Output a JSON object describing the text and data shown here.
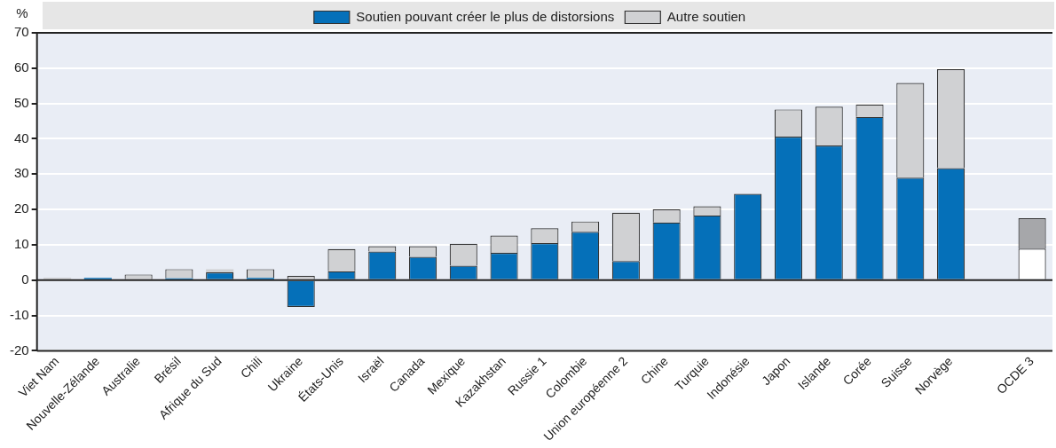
{
  "chart_data": {
    "type": "bar",
    "stacked": true,
    "ylabel": "%",
    "legend": "top",
    "grid": "y",
    "categories": [
      "Viet Nam",
      "Nouvelle-Zélande",
      "Australie",
      "Brésil",
      "Afrique du Sud",
      "Chili",
      "Ukraine",
      "États-Unis",
      "Israël",
      "Canada",
      "Mexique",
      "Kazakhstan",
      "Russie 1",
      "Colombie",
      "Union européenne 2",
      "Chine",
      "Turquie",
      "Indonésie",
      "Japon",
      "Islande",
      "Corée",
      "Suisse",
      "Norvège",
      null,
      "OCDE 3"
    ],
    "ylim": [
      -20,
      70
    ],
    "yticks": [
      -20,
      -10,
      0,
      10,
      20,
      30,
      40,
      50,
      60,
      70
    ],
    "series": [
      {
        "name": "Soutien pouvant créer le plus de distorsions",
        "color": "#0570b9",
        "colors": [
          "#0570b9",
          "#0570b9",
          "#0570b9",
          "#0570b9",
          "#0570b9",
          "#0570b9",
          "#0570b9",
          "#0570b9",
          "#0570b9",
          "#0570b9",
          "#0570b9",
          "#0570b9",
          "#0570b9",
          "#0570b9",
          "#0570b9",
          "#0570b9",
          "#0570b9",
          "#0570b9",
          "#0570b9",
          "#0570b9",
          "#0570b9",
          "#0570b9",
          "#0570b9",
          "#0570b9",
          "#ffffff"
        ],
        "values": [
          0,
          0.6,
          0,
          0.5,
          2.2,
          0.6,
          -7.6,
          2.5,
          8.1,
          6.6,
          4.1,
          7.7,
          10.5,
          13.7,
          5.4,
          16.3,
          18.3,
          24.4,
          40.6,
          38.1,
          46.2,
          29.0,
          31.7,
          null,
          8.9
        ]
      },
      {
        "name": "Autre soutien",
        "color": "#d0d1d3",
        "colors": [
          "#d0d1d3",
          "#d0d1d3",
          "#d0d1d3",
          "#d0d1d3",
          "#d0d1d3",
          "#d0d1d3",
          "#d0d1d3",
          "#d0d1d3",
          "#d0d1d3",
          "#d0d1d3",
          "#d0d1d3",
          "#d0d1d3",
          "#d0d1d3",
          "#d0d1d3",
          "#d0d1d3",
          "#d0d1d3",
          "#d0d1d3",
          "#d0d1d3",
          "#d0d1d3",
          "#d0d1d3",
          "#d0d1d3",
          "#d0d1d3",
          "#d0d1d3",
          "#d0d1d3",
          "#a6a7aa"
        ],
        "values": [
          0.7,
          null,
          1.6,
          2.6,
          0.9,
          2.5,
          1.2,
          6.3,
          1.5,
          3.0,
          6.2,
          4.9,
          4.2,
          2.9,
          13.7,
          3.7,
          2.6,
          null,
          7.7,
          11.0,
          3.5,
          26.8,
          28.0,
          null,
          8.6
        ]
      }
    ]
  }
}
